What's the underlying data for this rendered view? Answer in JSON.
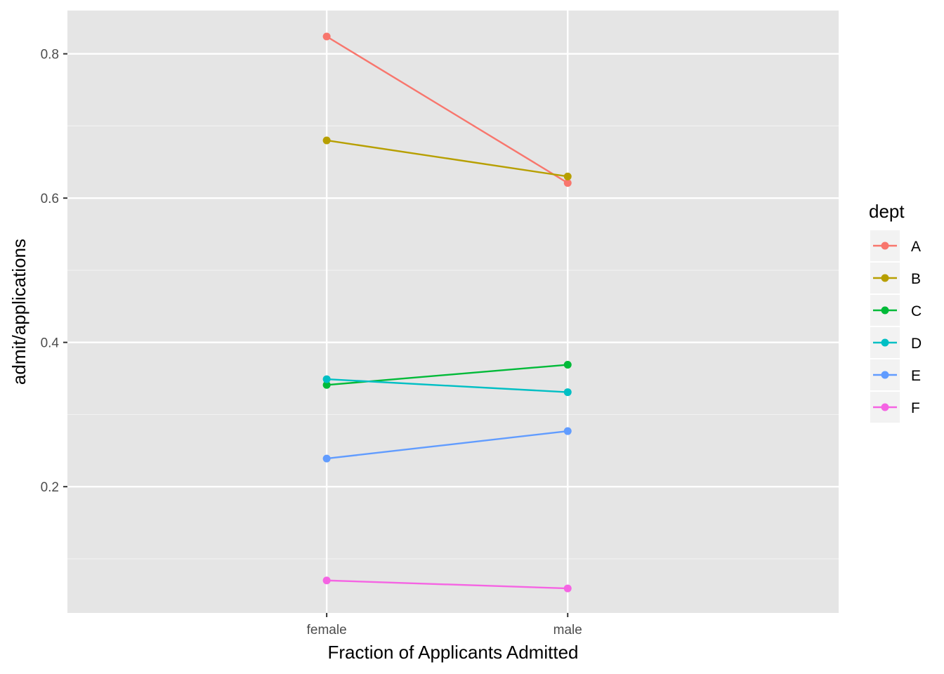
{
  "chart_data": {
    "type": "line",
    "title": "",
    "xlabel": "Fraction of Applicants Admitted",
    "ylabel": "admit/applications",
    "categories": [
      "female",
      "male"
    ],
    "ylim": [
      0.025,
      0.86
    ],
    "yticks": [
      0.2,
      0.4,
      0.6,
      0.8
    ],
    "ytick_labels": [
      "0.2",
      "0.4",
      "0.6",
      "0.8"
    ],
    "grid": true,
    "legend": {
      "title": "dept",
      "position": "right"
    },
    "series": [
      {
        "name": "A",
        "color": "#F8766D",
        "values": [
          0.824,
          0.621
        ]
      },
      {
        "name": "B",
        "color": "#B79F00",
        "values": [
          0.68,
          0.63
        ]
      },
      {
        "name": "C",
        "color": "#00BA38",
        "values": [
          0.341,
          0.369
        ]
      },
      {
        "name": "D",
        "color": "#00BFC4",
        "values": [
          0.349,
          0.331
        ]
      },
      {
        "name": "E",
        "color": "#619CFF",
        "values": [
          0.239,
          0.277
        ]
      },
      {
        "name": "F",
        "color": "#F564E3",
        "values": [
          0.07,
          0.059
        ]
      }
    ]
  }
}
